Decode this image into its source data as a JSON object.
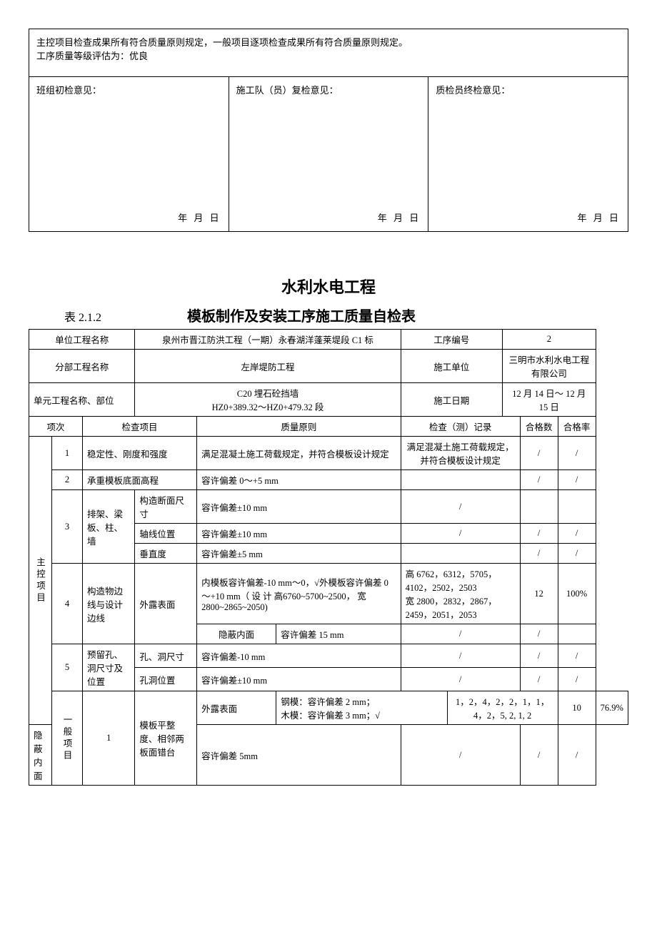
{
  "upper": {
    "conclusion_line1": "主控项目检查成果所有符合质量原则规定，一般项目逐项检查成果所有符合质量原则规定。",
    "conclusion_line2": "工序质量等级评估为：优良",
    "opinion1": "班组初检意见：",
    "opinion2": "施工队（员）复检意见：",
    "opinion3": "质检员终检意见：",
    "date_stub": "年    月    日"
  },
  "heading": "水利水电工程",
  "table_no": "表 2.1.2",
  "table_title": "模板制作及安装工序施工质量自检表",
  "header": {
    "unit_name_label": "单位工程名称",
    "unit_name_value": "泉州市晋江防洪工程（一期）永春湖洋蓬莱堤段 C1 标",
    "proc_no_label": "工序编号",
    "proc_no_value": "2",
    "sub_name_label": "分部工程名称",
    "sub_name_value": "左岸堤防工程",
    "contractor_label": "施工单位",
    "contractor_value": "三明市水利水电工程有限公司",
    "element_label": "单元工程名称、部位",
    "element_value": "C20 埋石砼挡墙\nHZ0+389.32～HZ0+479.32 段",
    "date_label": "施工日期",
    "date_value": "12 月 14 日～ 12 月 15 日"
  },
  "colhead": {
    "seq": "项次",
    "check_item": "检查项目",
    "quality_std": "质量原则",
    "record": "检查（测）记录",
    "pass_count": "合格数",
    "pass_rate": "合格率"
  },
  "group_main": "主控项目",
  "group_general": "一般项目",
  "rows": {
    "r1": {
      "no": "1",
      "item": "稳定性、刚度和强度",
      "std": "满足混凝土施工荷载规定，并符合模板设计规定",
      "rec": "满足混凝土施工荷载规定，并符合模板设计规定",
      "cnt": "/",
      "rate": "/"
    },
    "r2": {
      "no": "2",
      "item": "承重模板底面高程",
      "std": "容许偏差 0～+5 mm",
      "rec": "",
      "cnt": "/",
      "rate": "/"
    },
    "r3": {
      "no": "3",
      "item": "排架、梁板、柱、墙",
      "sub1_label": "构造断面尺寸",
      "sub1_std": "容许偏差±10 mm",
      "sub1_rec": "/",
      "sub1_cnt": "",
      "sub1_rate": "",
      "sub2_label": "轴线位置",
      "sub2_std": "容许偏差±10 mm",
      "sub2_rec": "/",
      "sub2_cnt": "/",
      "sub2_rate": "/",
      "sub3_label": "垂直度",
      "sub3_std": "容许偏差±5 mm",
      "sub3_rec": "",
      "sub3_cnt": "/",
      "sub3_rate": "/"
    },
    "r4": {
      "no": "4",
      "item": "构造物边线与设计边线",
      "sub1_label": "外露表面",
      "sub1_std": "内模板容许偏差-10 mm～0，√外模板容许偏差 0～+10 mm（ 设 计 高6760~5700~2500， 宽2800~2865~2050)",
      "sub1_rec": "高 6762，6312，5705，4102，2502，2503\n宽 2800，2832，2867，2459，2051，2053",
      "sub1_cnt": "12",
      "sub1_rate": "100%",
      "sub2_label": "隐蔽内面",
      "sub2_std": "容许偏差 15 mm",
      "sub2_rec": "/",
      "sub2_cnt": "/",
      "sub2_rate": ""
    },
    "r5": {
      "no": "5",
      "item": "预留孔、洞尺寸及位置",
      "sub1_label": "孔、洞尺寸",
      "sub1_std": "容许偏差-10 mm",
      "sub1_rec": "/",
      "sub1_cnt": "/",
      "sub1_rate": "/",
      "sub2_label": "孔洞位置",
      "sub2_std": "容许偏差±10 mm",
      "sub2_rec": "/",
      "sub2_cnt": "/",
      "sub2_rate": "/"
    },
    "g1": {
      "no": "1",
      "item": "模板平整度、相邻两板面错台",
      "sub1_label": "外露表面",
      "sub1_std": "钢模：容许偏差 2 mm；\n木模：容许偏差 3 mm；√",
      "sub1_rec": "1，2，4，2，2，1，1，4，2，5, 2, 1, 2",
      "sub1_cnt": "10",
      "sub1_rate": "76.9%",
      "sub2_label": "隐蔽内面",
      "sub2_std": "容许偏差 5mm",
      "sub2_rec": "/",
      "sub2_cnt": "/",
      "sub2_rate": "/"
    }
  }
}
